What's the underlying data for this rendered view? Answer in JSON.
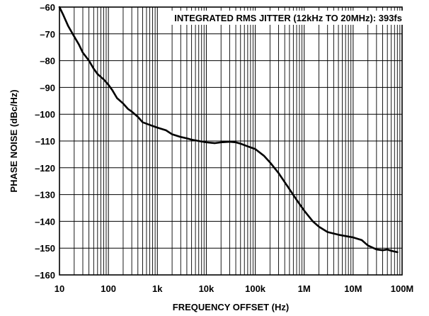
{
  "chart_data": {
    "type": "line",
    "xlabel": "FREQUENCY OFFSET (Hz)",
    "ylabel": "PHASE NOISE (dBc/Hz)",
    "annotation": "INTEGRATED RMS JITTER (12kHz TO 20MHz): 393fs",
    "x_scale": "log",
    "xlim": [
      10,
      100000000
    ],
    "ylim": [
      -160,
      -60
    ],
    "x_ticks": [
      {
        "value": 10,
        "label": "10"
      },
      {
        "value": 100,
        "label": "100"
      },
      {
        "value": 1000,
        "label": "1k"
      },
      {
        "value": 10000,
        "label": "10k"
      },
      {
        "value": 100000,
        "label": "100k"
      },
      {
        "value": 1000000,
        "label": "1M"
      },
      {
        "value": 10000000,
        "label": "10M"
      },
      {
        "value": 100000000,
        "label": "100M"
      }
    ],
    "y_ticks": [
      {
        "value": -60,
        "label": "–60"
      },
      {
        "value": -70,
        "label": "–70"
      },
      {
        "value": -80,
        "label": "–80"
      },
      {
        "value": -90,
        "label": "–90"
      },
      {
        "value": -100,
        "label": "–100"
      },
      {
        "value": -110,
        "label": "–110"
      },
      {
        "value": -120,
        "label": "–120"
      },
      {
        "value": -130,
        "label": "–130"
      },
      {
        "value": -140,
        "label": "–140"
      },
      {
        "value": -150,
        "label": "–150"
      },
      {
        "value": -160,
        "label": "–160"
      }
    ],
    "grid": true,
    "series": [
      {
        "x": [
          10,
          12,
          15,
          20,
          25,
          30,
          40,
          50,
          60,
          80,
          100,
          120,
          150,
          200,
          250,
          300,
          400,
          500,
          700,
          1000,
          1500,
          2000,
          3000,
          4000,
          5000,
          7000,
          10000,
          15000,
          20000,
          30000,
          40000,
          50000,
          70000,
          100000,
          150000,
          200000,
          300000,
          500000,
          700000,
          1000000,
          1500000,
          2000000,
          3000000,
          5000000,
          7000000,
          10000000,
          15000000,
          20000000,
          30000000,
          40000000,
          50000000,
          60000000,
          80000000
        ],
        "y": [
          -60,
          -63,
          -67,
          -71,
          -74,
          -77,
          -80,
          -83,
          -85,
          -87,
          -89,
          -91,
          -94,
          -96,
          -98,
          -99,
          -101,
          -103,
          -104,
          -105,
          -106,
          -107.5,
          -108.5,
          -109,
          -109.5,
          -110,
          -110.5,
          -110.8,
          -110.5,
          -110.3,
          -110.5,
          -111,
          -112,
          -113,
          -115.5,
          -118,
          -122,
          -128,
          -132,
          -136,
          -140,
          -142,
          -144,
          -145,
          -145.5,
          -146,
          -147,
          -149,
          -150.5,
          -150.8,
          -150.5,
          -151,
          -151.5
        ]
      }
    ]
  }
}
